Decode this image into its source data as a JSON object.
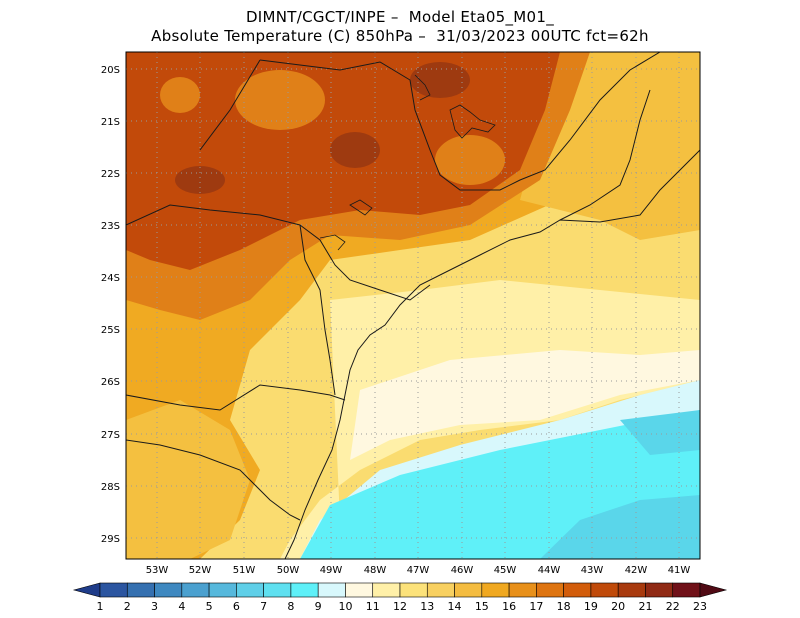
{
  "title": {
    "line1": "DIMNT/CGCT/INPE –  Model Eta05_M01_",
    "line2": "Absolute Temperature (C) 850hPa –  31/03/2023 00UTC fct=62h"
  },
  "map": {
    "lat_labels": [
      "20S",
      "21S",
      "22S",
      "23S",
      "24S",
      "25S",
      "26S",
      "27S",
      "28S",
      "29S"
    ],
    "lon_labels": [
      "53W",
      "52W",
      "51W",
      "50W",
      "49W",
      "48W",
      "47W",
      "46W",
      "45W",
      "44W",
      "43W",
      "42W",
      "41W"
    ]
  },
  "colorbar": {
    "labels": [
      "1",
      "2",
      "3",
      "4",
      "5",
      "6",
      "7",
      "8",
      "9",
      "10",
      "11",
      "12",
      "13",
      "14",
      "15",
      "16",
      "17",
      "18",
      "19",
      "20",
      "21",
      "22",
      "23"
    ],
    "colors": [
      "#1f3c8a",
      "#2b55a0",
      "#3570b0",
      "#3e88c0",
      "#4aa0cf",
      "#56b8dc",
      "#5fcfe8",
      "#5fe0f0",
      "#5ef0f8",
      "#d8f8fc",
      "#fff8e0",
      "#fff0a8",
      "#fce27a",
      "#f8d060",
      "#f4bc40",
      "#f0a820",
      "#e8901a",
      "#de7410",
      "#d25c0a",
      "#c04a0a",
      "#a83a0e",
      "#902a14",
      "#701018",
      "#500a14"
    ]
  },
  "map_colors": {
    "hot": "#c24a0a",
    "very_hot": "#9e3a10",
    "warm": "#e08018",
    "orange": "#f0aa22",
    "light_orange": "#f4c040",
    "yellow": "#fadc70",
    "pale_yellow": "#fff0a8",
    "cream": "#fff8e0",
    "light_cyan": "#d8f8fc",
    "cyan": "#5ff0f8",
    "blue_cyan": "#5ad6ea"
  }
}
